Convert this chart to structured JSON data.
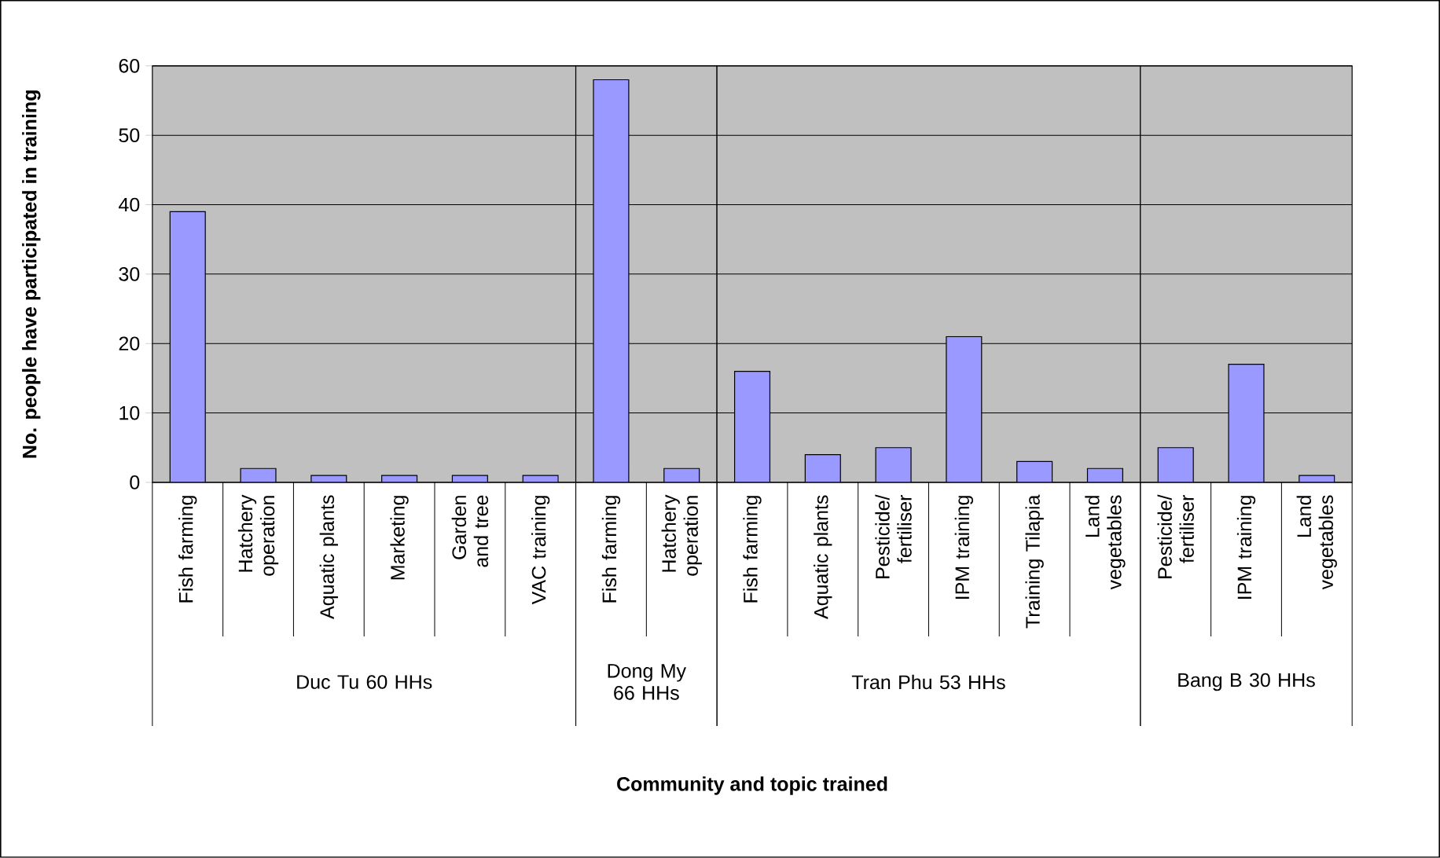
{
  "chart_data": [
    {
      "type": "bar",
      "categories": [
        "Fish farming",
        "Hatchery operation",
        "Aquatic plants",
        "Marketing",
        "Garden and tree",
        "VAC training"
      ],
      "values": [
        39,
        2,
        1,
        1,
        1,
        1
      ],
      "color": "#9999ff",
      "ylim": [
        0,
        60
      ],
      "yticks": [
        0,
        10,
        20,
        30,
        40,
        50,
        60
      ],
      "grid": "y",
      "xlabel": "Duc Tu 60 HHs",
      "ylabel": "No. people have participated in training",
      "annotations": [
        "Community and topic trained"
      ]
    },
    {
      "type": "bar",
      "categories": [
        "Fish farming",
        "Hatchery operation"
      ],
      "values": [
        58,
        2
      ],
      "color": "#9999ff",
      "ylim": [
        0,
        60
      ],
      "yticks": [
        0,
        10,
        20,
        30,
        40,
        50,
        60
      ],
      "grid": "y",
      "xlabel": "Dong My 66 HHs",
      "tick_labels": "x"
    },
    {
      "type": "bar",
      "categories": [
        "Fish farming",
        "Aquatic plants",
        "Pesticide/ fertiliser",
        "IPM training",
        "Training Tilapia",
        "Land vegetables"
      ],
      "values": [
        16,
        4,
        5,
        21,
        3,
        2
      ],
      "color": "#9999ff",
      "ylim": [
        0,
        60
      ],
      "yticks": [
        0,
        10,
        20,
        30,
        40,
        50,
        60
      ],
      "grid": "y",
      "xlabel": "Tran Phu 53 HHs",
      "tick_labels": "x"
    },
    {
      "type": "bar",
      "categories": [
        "Pesticide/ fertiliser",
        "IPM training",
        "Land vegetables"
      ],
      "values": [
        5,
        17,
        1
      ],
      "color": "#9999ff",
      "ylim": [
        0,
        60
      ],
      "yticks": [
        0,
        10,
        20,
        30,
        40,
        50,
        60
      ],
      "grid": "y",
      "xlabel": "Bang B 30 HHs",
      "tick_labels": "x"
    }
  ]
}
